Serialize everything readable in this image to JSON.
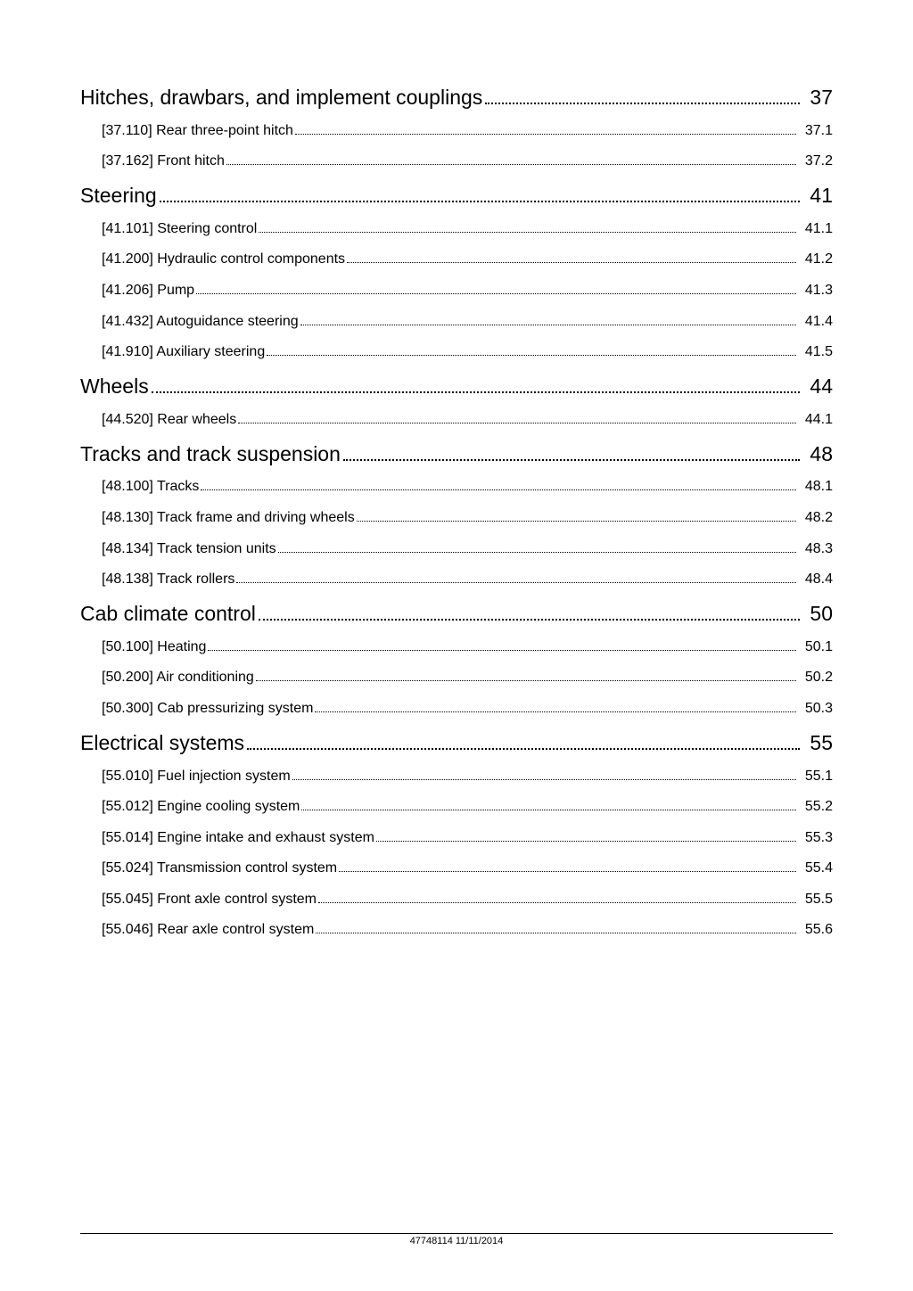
{
  "footer": "47748114 11/11/2014",
  "toc": [
    {
      "type": "section",
      "label": "Hitches, drawbars, and implement couplings",
      "page": "37",
      "items": [
        {
          "label": "[37.110] Rear three-point hitch",
          "page": "37.1"
        },
        {
          "label": "[37.162] Front hitch",
          "page": "37.2"
        }
      ]
    },
    {
      "type": "section",
      "label": "Steering",
      "page": "41",
      "items": [
        {
          "label": "[41.101] Steering control",
          "page": "41.1"
        },
        {
          "label": "[41.200] Hydraulic control components",
          "page": "41.2"
        },
        {
          "label": "[41.206] Pump",
          "page": "41.3"
        },
        {
          "label": "[41.432] Autoguidance steering",
          "page": "41.4"
        },
        {
          "label": "[41.910] Auxiliary steering",
          "page": "41.5"
        }
      ]
    },
    {
      "type": "section",
      "label": "Wheels",
      "page": "44",
      "items": [
        {
          "label": "[44.520] Rear wheels",
          "page": "44.1"
        }
      ]
    },
    {
      "type": "section",
      "label": "Tracks and track suspension",
      "page": "48",
      "items": [
        {
          "label": "[48.100] Tracks",
          "page": "48.1"
        },
        {
          "label": "[48.130] Track frame and driving wheels",
          "page": "48.2"
        },
        {
          "label": "[48.134] Track tension units",
          "page": "48.3"
        },
        {
          "label": "[48.138] Track rollers",
          "page": "48.4"
        }
      ]
    },
    {
      "type": "section",
      "label": "Cab climate control",
      "page": "50",
      "items": [
        {
          "label": "[50.100] Heating",
          "page": "50.1"
        },
        {
          "label": "[50.200] Air conditioning",
          "page": "50.2"
        },
        {
          "label": "[50.300] Cab pressurizing system",
          "page": "50.3"
        }
      ]
    },
    {
      "type": "section",
      "label": "Electrical systems",
      "page": "55",
      "items": [
        {
          "label": "[55.010] Fuel injection system",
          "page": "55.1"
        },
        {
          "label": "[55.012] Engine cooling system",
          "page": "55.2"
        },
        {
          "label": "[55.014] Engine intake and exhaust system",
          "page": "55.3"
        },
        {
          "label": "[55.024] Transmission control system",
          "page": "55.4"
        },
        {
          "label": "[55.045] Front axle control system",
          "page": "55.5"
        },
        {
          "label": "[55.046] Rear axle control system",
          "page": "55.6"
        }
      ]
    }
  ]
}
